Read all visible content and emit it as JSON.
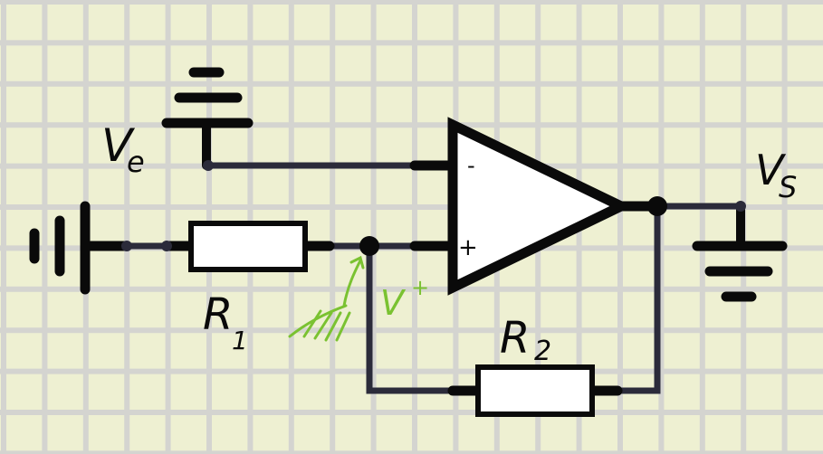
{
  "colors": {
    "background": "#eef0d2",
    "grid": "#d4d4d0",
    "component": "#0a0a0a",
    "wire": "#2b2b3a",
    "annotation": "#7ac231",
    "fill": "#ffffff"
  },
  "labels": {
    "ve_main": "V",
    "ve_sub": "e",
    "vs_main": "V",
    "vs_sub": "S",
    "r1_main": "R",
    "r1_sub": "1",
    "r2_main": "R",
    "r2_sub": "2",
    "minus": "-",
    "plus": "+",
    "vplus_main": "V",
    "vplus_sup": "+"
  },
  "icons": {
    "opamp": "opamp-triangle-icon",
    "ground": "ground-symbol-icon",
    "battery": "battery-icon",
    "resistor": "resistor-icon",
    "hatch": "hatch-mark-icon"
  }
}
